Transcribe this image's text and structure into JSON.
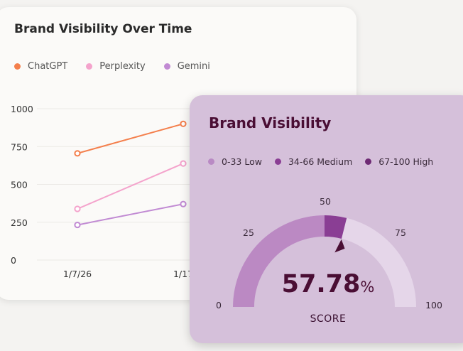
{
  "line_card": {
    "title": "Brand Visibility Over Time",
    "legend": [
      {
        "label": "ChatGPT",
        "color": "#f47f4c"
      },
      {
        "label": "Perplexity",
        "color": "#f4a3cc"
      },
      {
        "label": "Gemini",
        "color": "#c18ad3"
      }
    ]
  },
  "gauge_card": {
    "title": "Brand Visibility",
    "legend": [
      {
        "label": "0-33 Low",
        "color": "#b98ac4"
      },
      {
        "label": "34-66 Medium",
        "color": "#8a3e94"
      },
      {
        "label": "67-100 High",
        "color": "#6e2a74"
      }
    ],
    "score_value": "57.78",
    "score_unit": "%",
    "score_label": "SCORE"
  },
  "chart_data": [
    {
      "type": "line",
      "title": "Brand Visibility Over Time",
      "x": [
        "1/7/26",
        "1/17"
      ],
      "ylim": [
        0,
        1000
      ],
      "yticks": [
        0,
        250,
        500,
        750,
        1000
      ],
      "grid": true,
      "legend_position": "top-left",
      "series": [
        {
          "name": "ChatGPT",
          "color": "#f47f4c",
          "values": [
            705,
            900
          ]
        },
        {
          "name": "Perplexity",
          "color": "#f4a3cc",
          "values": [
            338,
            638
          ]
        },
        {
          "name": "Gemini",
          "color": "#c18ad3",
          "values": [
            232,
            370
          ]
        }
      ]
    },
    {
      "type": "gauge",
      "title": "Brand Visibility",
      "value": 57.78,
      "range": [
        0,
        100
      ],
      "ticks": [
        0,
        25,
        50,
        75,
        100
      ],
      "bands": [
        {
          "name": "0-33 Low",
          "from": 0,
          "to": 33,
          "color": "#b98ac4"
        },
        {
          "name": "34-66 Medium",
          "from": 34,
          "to": 66,
          "color": "#8a3e94"
        },
        {
          "name": "67-100 High",
          "from": 67,
          "to": 100,
          "color": "#6e2a74"
        }
      ]
    }
  ]
}
